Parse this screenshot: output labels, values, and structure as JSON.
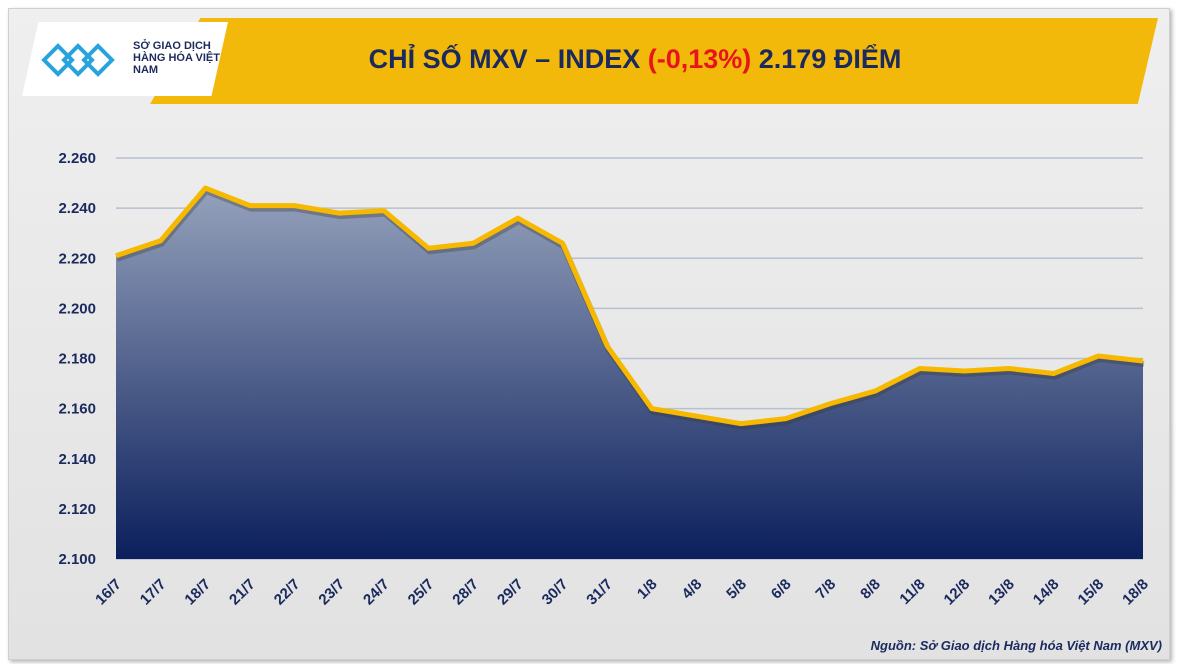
{
  "header": {
    "logo_text": "SỞ GIAO DỊCH HÀNG HÓA VIỆT NAM",
    "title_prefix": "CHỈ SỐ MXV – INDEX ",
    "title_change": "(-0,13%)",
    "title_suffix": " 2.179 ĐIỂM"
  },
  "colors": {
    "line": "#f7b800",
    "fill_top": "#8f9db8",
    "fill_bottom": "#0b1f5c",
    "change": "#e8131b",
    "text": "#1a2a5e"
  },
  "source": "Nguồn: Sở Giao dịch Hàng hóa Việt Nam (MXV)",
  "chart_data": {
    "type": "area",
    "categories": [
      "16/7",
      "17/7",
      "18/7",
      "21/7",
      "22/7",
      "23/7",
      "24/7",
      "25/7",
      "28/7",
      "29/7",
      "30/7",
      "31/7",
      "1/8",
      "4/8",
      "5/8",
      "6/8",
      "7/8",
      "8/8",
      "11/8",
      "12/8",
      "13/8",
      "14/8",
      "15/8",
      "18/8"
    ],
    "values": [
      2221,
      2227,
      2248,
      2241,
      2241,
      2238,
      2239,
      2224,
      2226,
      2236,
      2226,
      2185,
      2160,
      2157,
      2154,
      2156,
      2162,
      2167,
      2176,
      2175,
      2176,
      2174,
      2181,
      2179
    ],
    "yticks": [
      "2.100",
      "2.120",
      "2.140",
      "2.160",
      "2.180",
      "2.200",
      "2.220",
      "2.240",
      "2.260"
    ],
    "ylim": [
      2100,
      2260
    ],
    "grid": true
  }
}
